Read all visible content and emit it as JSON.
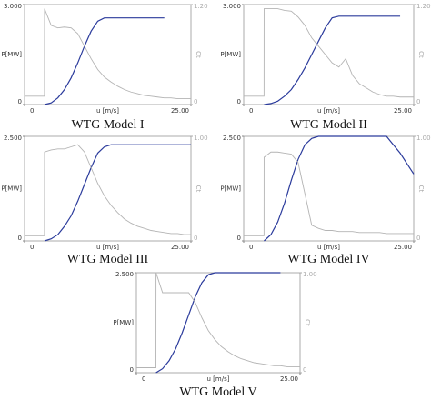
{
  "chart_data": [
    {
      "type": "line",
      "title": "WTG Model I",
      "x_label": "u [m/s]",
      "y_label": "P[MW]",
      "y2_label": "Ct",
      "x": [
        0,
        2.99,
        3,
        4,
        5,
        6,
        7,
        8,
        9,
        10,
        11,
        12,
        13,
        14,
        15,
        16,
        17,
        18,
        19,
        20,
        21,
        22,
        23,
        24,
        25
      ],
      "xlim": [
        0,
        25
      ],
      "xticks": [
        0,
        {
          "value": 25,
          "label": "25.00"
        }
      ],
      "ylim": [
        0,
        3
      ],
      "yticks": [
        0,
        {
          "value": 3,
          "label": "3.000"
        }
      ],
      "y2lim": [
        0,
        1.2
      ],
      "y2ticks": [
        0,
        {
          "value": 1.2,
          "label": "1.20"
        }
      ],
      "series": [
        {
          "name": "P",
          "color": "#2b3b9c",
          "values": [
            null,
            null,
            0,
            0.05,
            0.2,
            0.45,
            0.8,
            1.25,
            1.75,
            2.2,
            2.5,
            2.6,
            2.6,
            2.6,
            2.6,
            2.6,
            2.6,
            2.6,
            2.6,
            2.6,
            2.6,
            null,
            null,
            null,
            null
          ]
        },
        {
          "name": "Ct",
          "color": "#b4b4b4",
          "axis": "y2",
          "values": [
            0.1,
            0.1,
            1.15,
            0.95,
            0.92,
            0.93,
            0.92,
            0.85,
            0.7,
            0.55,
            0.42,
            0.33,
            0.27,
            0.22,
            0.18,
            0.15,
            0.13,
            0.11,
            0.1,
            0.09,
            0.08,
            0.08,
            0.07,
            0.07,
            0.07
          ]
        }
      ]
    },
    {
      "type": "line",
      "title": "WTG Model II",
      "x_label": "u [m/s]",
      "y_label": "P[MW]",
      "y2_label": "Ct",
      "x": [
        0,
        2.99,
        3,
        4,
        5,
        6,
        7,
        8,
        9,
        10,
        11,
        12,
        13,
        14,
        15,
        16,
        17,
        18,
        19,
        20,
        21,
        22,
        23,
        24,
        25
      ],
      "xlim": [
        0,
        25
      ],
      "xticks": [
        0,
        {
          "value": 25,
          "label": "25.00"
        }
      ],
      "ylim": [
        0,
        3
      ],
      "yticks": [
        0,
        {
          "value": 3,
          "label": "3.000"
        }
      ],
      "y2lim": [
        0,
        1.2
      ],
      "y2ticks": [
        0,
        {
          "value": 1.2,
          "label": "1.20"
        }
      ],
      "series": [
        {
          "name": "P",
          "color": "#2b3b9c",
          "values": [
            null,
            null,
            0,
            0.03,
            0.1,
            0.25,
            0.45,
            0.75,
            1.1,
            1.5,
            1.9,
            2.3,
            2.6,
            2.65,
            2.65,
            2.65,
            2.65,
            2.65,
            2.65,
            2.65,
            2.65,
            2.65,
            2.65,
            null,
            null
          ]
        },
        {
          "name": "Ct",
          "color": "#b4b4b4",
          "axis": "y2",
          "values": [
            0.1,
            0.1,
            1.15,
            1.15,
            1.15,
            1.13,
            1.12,
            1.05,
            0.95,
            0.8,
            0.7,
            0.6,
            0.5,
            0.45,
            0.55,
            0.35,
            0.25,
            0.2,
            0.15,
            0.12,
            0.1,
            0.1,
            0.09,
            0.09,
            0.09
          ]
        }
      ]
    },
    {
      "type": "line",
      "title": "WTG Model III",
      "x_label": "u [m/s]",
      "y_label": "P[MW]",
      "y2_label": "Ct",
      "x": [
        0,
        2.99,
        3,
        4,
        5,
        6,
        7,
        8,
        9,
        10,
        11,
        12,
        13,
        14,
        15,
        16,
        17,
        18,
        19,
        20,
        21,
        22,
        23,
        24,
        25
      ],
      "xlim": [
        0,
        25
      ],
      "xticks": [
        0,
        {
          "value": 25,
          "label": "25.00"
        }
      ],
      "ylim": [
        0,
        2.5
      ],
      "yticks": [
        0,
        {
          "value": 2.5,
          "label": "2.500"
        }
      ],
      "y2lim": [
        0,
        1
      ],
      "y2ticks": [
        0,
        {
          "value": 1,
          "label": "1.00"
        }
      ],
      "series": [
        {
          "name": "P",
          "color": "#2b3b9c",
          "values": [
            null,
            null,
            0,
            0.05,
            0.15,
            0.35,
            0.6,
            0.95,
            1.35,
            1.75,
            2.1,
            2.25,
            2.3,
            2.3,
            2.3,
            2.3,
            2.3,
            2.3,
            2.3,
            2.3,
            2.3,
            2.3,
            2.3,
            2.3,
            2.3
          ]
        },
        {
          "name": "Ct",
          "color": "#b4b4b4",
          "axis": "y2",
          "values": [
            0.05,
            0.05,
            0.85,
            0.87,
            0.88,
            0.88,
            0.9,
            0.92,
            0.85,
            0.7,
            0.55,
            0.43,
            0.34,
            0.27,
            0.21,
            0.17,
            0.14,
            0.12,
            0.1,
            0.09,
            0.08,
            0.07,
            0.07,
            0.06,
            0.06
          ]
        }
      ]
    },
    {
      "type": "line",
      "title": "WTG Model IV",
      "x_label": "u [m/s]",
      "y_label": "P[MW]",
      "y2_label": "Ct",
      "x": [
        0,
        2.99,
        3,
        4,
        5,
        6,
        7,
        8,
        9,
        10,
        11,
        12,
        13,
        14,
        15,
        16,
        17,
        18,
        19,
        20,
        21,
        22,
        23,
        24,
        25
      ],
      "xlim": [
        0,
        25
      ],
      "xticks": [
        0,
        {
          "value": 25,
          "label": "25.00"
        }
      ],
      "ylim": [
        0,
        2.5
      ],
      "yticks": [
        0,
        {
          "value": 2.5,
          "label": "2.500"
        }
      ],
      "y2lim": [
        0,
        1
      ],
      "y2ticks": [
        0,
        {
          "value": 1,
          "label": "1.00"
        }
      ],
      "series": [
        {
          "name": "P",
          "color": "#2b3b9c",
          "values": [
            null,
            null,
            0,
            0.15,
            0.45,
            0.9,
            1.45,
            1.95,
            2.3,
            2.45,
            2.5,
            2.5,
            2.5,
            2.5,
            2.5,
            2.5,
            2.5,
            2.5,
            2.5,
            2.5,
            2.5,
            2.3,
            2.1,
            1.85,
            1.6
          ]
        },
        {
          "name": "Ct",
          "color": "#b4b4b4",
          "axis": "y2",
          "values": [
            0.05,
            0.05,
            0.8,
            0.85,
            0.85,
            0.84,
            0.83,
            0.75,
            0.45,
            0.15,
            0.12,
            0.1,
            0.1,
            0.09,
            0.09,
            0.09,
            0.08,
            0.08,
            0.08,
            0.08,
            0.07,
            0.07,
            0.07,
            0.07,
            0.07
          ]
        }
      ]
    },
    {
      "type": "line",
      "title": "WTG Model V",
      "x_label": "u [m/s]",
      "y_label": "P[MW]",
      "y2_label": "Ct",
      "x": [
        0,
        2.99,
        3,
        4,
        5,
        6,
        7,
        8,
        9,
        10,
        11,
        12,
        13,
        14,
        15,
        16,
        17,
        18,
        19,
        20,
        21,
        22,
        23,
        24,
        25
      ],
      "xlim": [
        0,
        25
      ],
      "xticks": [
        0,
        {
          "value": 25,
          "label": "25.00"
        }
      ],
      "ylim": [
        0,
        2.5
      ],
      "yticks": [
        0,
        {
          "value": 2.5,
          "label": "2.500"
        }
      ],
      "y2lim": [
        0,
        1
      ],
      "y2ticks": [
        0,
        {
          "value": 1,
          "label": "1.00"
        }
      ],
      "series": [
        {
          "name": "P",
          "color": "#2b3b9c",
          "values": [
            null,
            null,
            0,
            0.1,
            0.3,
            0.6,
            1.0,
            1.45,
            1.9,
            2.25,
            2.45,
            2.5,
            2.5,
            2.5,
            2.5,
            2.5,
            2.5,
            2.5,
            2.5,
            2.5,
            2.5,
            2.5,
            null,
            null,
            null
          ]
        },
        {
          "name": "Ct",
          "color": "#b4b4b4",
          "axis": "y2",
          "values": [
            0.05,
            0.05,
            1.0,
            0.8,
            0.8,
            0.8,
            0.8,
            0.8,
            0.7,
            0.55,
            0.42,
            0.33,
            0.26,
            0.21,
            0.17,
            0.14,
            0.12,
            0.1,
            0.09,
            0.08,
            0.07,
            0.07,
            0.06,
            0.06,
            0.06
          ]
        }
      ]
    }
  ]
}
